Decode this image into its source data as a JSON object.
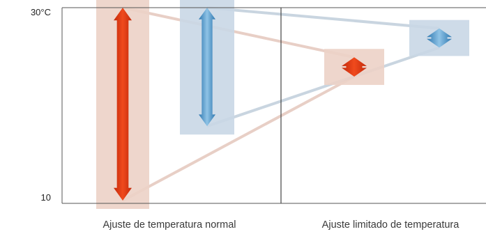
{
  "axis": {
    "top_label": "30°C",
    "bottom_label": "10",
    "range": {
      "min": 10,
      "max": 30,
      "unit": "°C"
    }
  },
  "panels": [
    {
      "caption": "Ajuste de temperatura normal"
    },
    {
      "caption": "Ajuste limitado de temperatura"
    }
  ],
  "ranges": {
    "normal_heating": {
      "min": 10,
      "max": 30,
      "color": "#e0421f",
      "band_color": "#ecd1c6"
    },
    "normal_cooling": {
      "min": 18,
      "max": 30,
      "color": "#4f93c4",
      "band_color": "#c9d7e6"
    },
    "limited_heating": {
      "min": 23,
      "max": 25,
      "color": "#e0421f",
      "band_color": "#ecd1c6"
    },
    "limited_cooling": {
      "min": 26,
      "max": 28,
      "color": "#4f93c4",
      "band_color": "#c9d7e6"
    }
  }
}
